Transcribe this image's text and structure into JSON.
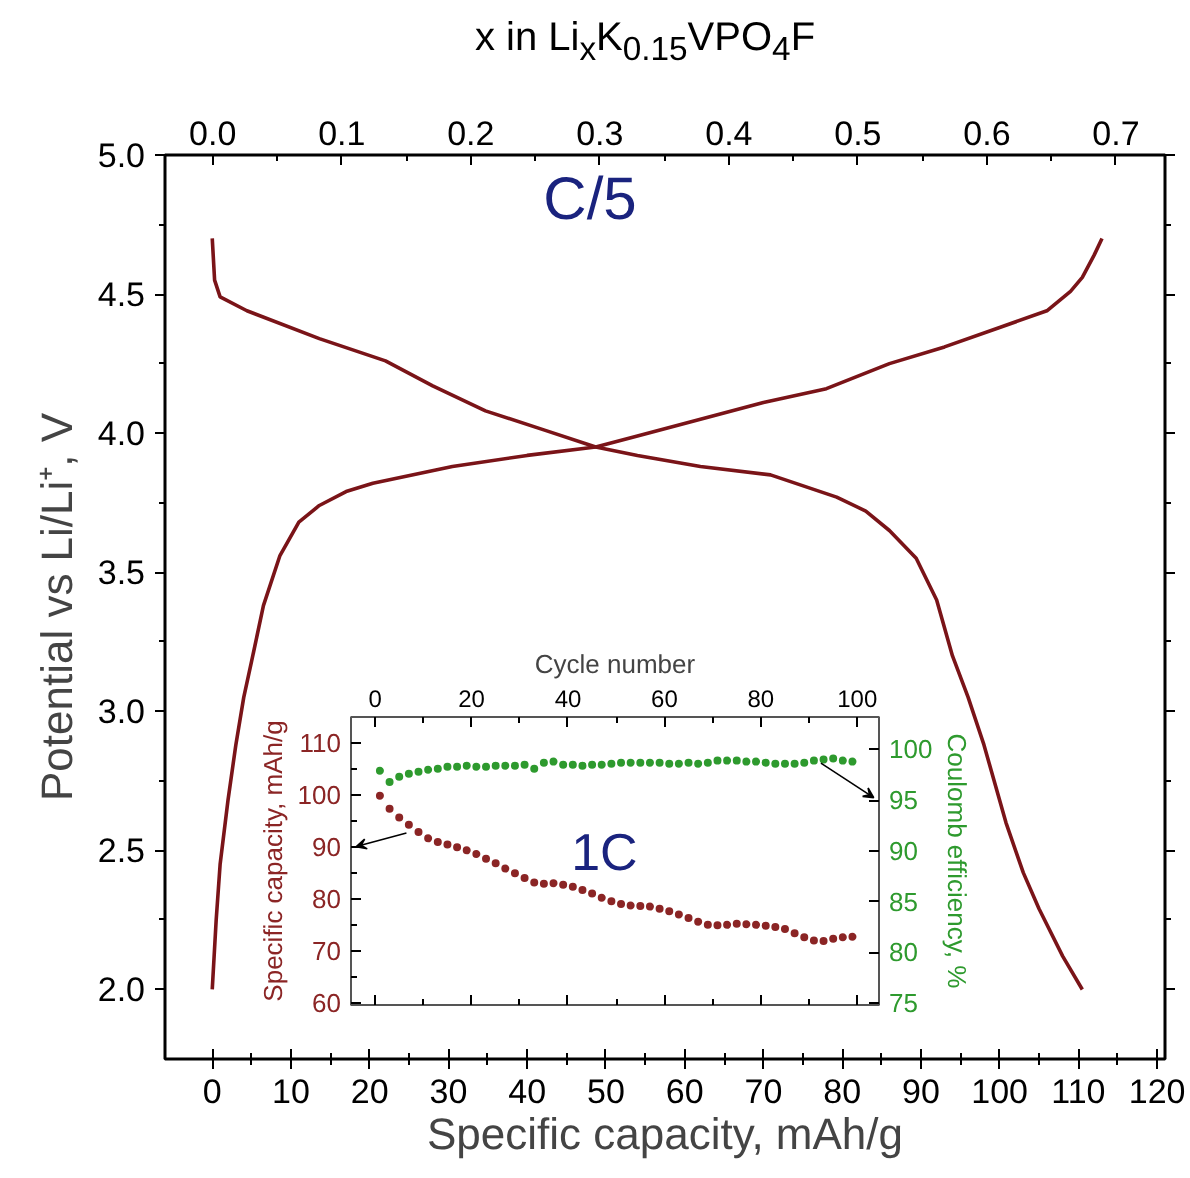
{
  "chart_data": [
    {
      "type": "line",
      "xlabel": "Specific capacity, mAh/g",
      "ylabel": "Potential vs Li/Li⁺, V",
      "x2label": "x in Li$_{x}$K$_{0.15}$VPO$_{4}$F",
      "xlim": [
        -6,
        121
      ],
      "ylim": [
        1.75,
        5.0
      ],
      "x2lim": [
        -0.037,
        0.738
      ],
      "xticks": [
        0,
        {
          "value": 5,
          "label": null
        },
        10,
        {
          "value": 15,
          "label": null
        },
        20,
        {
          "value": 25,
          "label": null
        },
        30,
        {
          "value": 35,
          "label": null
        },
        40,
        {
          "value": 45,
          "label": null
        },
        50,
        {
          "value": 55,
          "label": null
        },
        60,
        {
          "value": 65,
          "label": null
        },
        70,
        {
          "value": 75,
          "label": null
        },
        80,
        {
          "value": 85,
          "label": null
        },
        90,
        {
          "value": 95,
          "label": null
        },
        100,
        {
          "value": 105,
          "label": null
        },
        110,
        {
          "value": 115,
          "label": null
        },
        120
      ],
      "yticks": [
        {
          "value": 2,
          "label": "2.0"
        },
        {
          "value": 2.25,
          "label": null
        },
        2.5,
        {
          "value": 2.75,
          "label": null
        },
        {
          "value": 3,
          "label": "3.0"
        },
        {
          "value": 3.25,
          "label": null
        },
        3.5,
        {
          "value": 3.75,
          "label": null
        },
        {
          "value": 4,
          "label": "4.0"
        },
        {
          "value": 4.25,
          "label": null
        },
        4.5,
        {
          "value": 4.75,
          "label": null
        },
        {
          "value": 5,
          "label": "5.0"
        }
      ],
      "x2ticks": [
        {
          "value": 0,
          "label": "0.0"
        },
        {
          "value": 0.05,
          "label": null
        },
        0.1,
        {
          "value": 0.15,
          "label": null
        },
        0.2,
        {
          "value": 0.25,
          "label": null
        },
        0.3,
        {
          "value": 0.35,
          "label": null
        },
        0.4,
        {
          "value": 0.45,
          "label": null
        },
        0.5,
        {
          "value": 0.55,
          "label": null
        },
        0.6,
        {
          "value": 0.65,
          "label": null
        },
        0.7
      ],
      "annotations": [
        "C/5"
      ],
      "series": [
        {
          "color": "#7a1418",
          "x": [
            0,
            0.5,
            1,
            2,
            3,
            4,
            5,
            6.5,
            8.6,
            11,
            13.6,
            17,
            20.4,
            30.5,
            40,
            48.7,
            54,
            62,
            70,
            78,
            86,
            93,
            100,
            106,
            109,
            110.5,
            112,
            113
          ],
          "values": [
            2.0,
            2.25,
            2.45,
            2.68,
            2.88,
            3.05,
            3.18,
            3.38,
            3.56,
            3.68,
            3.74,
            3.79,
            3.82,
            3.88,
            3.92,
            3.95,
            3.99,
            4.05,
            4.11,
            4.16,
            4.25,
            4.31,
            4.38,
            4.44,
            4.51,
            4.56,
            4.64,
            4.7
          ]
        },
        {
          "color": "#7a1418",
          "x": [
            0,
            0.3,
            1,
            4.4,
            13.6,
            22,
            28,
            34.7,
            42.3,
            48.7,
            54,
            62,
            70.9,
            79.3,
            83,
            86,
            89.4,
            92,
            94,
            96,
            98,
            100.8,
            103,
            105,
            108,
            110.5
          ],
          "values": [
            4.7,
            4.55,
            4.49,
            4.44,
            4.34,
            4.26,
            4.17,
            4.08,
            4.01,
            3.95,
            3.92,
            3.88,
            3.85,
            3.77,
            3.72,
            3.65,
            3.55,
            3.4,
            3.2,
            3.05,
            2.88,
            2.6,
            2.42,
            2.29,
            2.12,
            2.0
          ]
        }
      ]
    },
    {
      "type": "scatter",
      "xlabel": "Cycle number",
      "ylabel": "Specific capacity, mAh/g",
      "y2label": "Coulomb efficiency, %",
      "xlim": [
        -5,
        104.5
      ],
      "ylim": [
        59.6,
        114.9
      ],
      "y2lim": [
        74.8,
        103.2
      ],
      "xticks": [
        0,
        {
          "value": 10,
          "label": null
        },
        20,
        {
          "value": 30,
          "label": null
        },
        40,
        {
          "value": 50,
          "label": null
        },
        60,
        {
          "value": 70,
          "label": null
        },
        80,
        {
          "value": 90,
          "label": null
        },
        100
      ],
      "yticks": [
        60,
        {
          "value": 65,
          "label": null
        },
        70,
        {
          "value": 75,
          "label": null
        },
        80,
        {
          "value": 85,
          "label": null
        },
        90,
        {
          "value": 95,
          "label": null
        },
        100,
        {
          "value": 105,
          "label": null
        },
        110
      ],
      "y2ticks": [
        75,
        80,
        85,
        90,
        95,
        100
      ],
      "marker": "circle",
      "annotations": [
        "1C"
      ],
      "series": [
        {
          "color": "#8b2525",
          "x": [
            1,
            3,
            5,
            7,
            9,
            11,
            13,
            15,
            17,
            19,
            21,
            23,
            25,
            27,
            29,
            31,
            33,
            35,
            37,
            39,
            41,
            43,
            45,
            47,
            49,
            51,
            53,
            55,
            57,
            59,
            61,
            63,
            65,
            67,
            69,
            71,
            73,
            75,
            77,
            79,
            81,
            83,
            85,
            87,
            89,
            91,
            93,
            95,
            97,
            99
          ],
          "values": [
            99.8,
            97.3,
            95.6,
            94.2,
            92.8,
            91.6,
            90.9,
            90.4,
            89.9,
            89.3,
            88.6,
            87.7,
            86.8,
            85.8,
            84.9,
            84.0,
            83.1,
            82.9,
            83.0,
            82.7,
            82.3,
            81.7,
            81.0,
            80.2,
            79.5,
            79.0,
            78.7,
            78.6,
            78.5,
            78.1,
            77.6,
            77.0,
            76.3,
            75.6,
            75.0,
            74.9,
            75.0,
            75.2,
            75.1,
            75.0,
            74.8,
            74.6,
            74.2,
            73.4,
            72.6,
            72.0,
            71.9,
            72.3,
            72.6,
            72.7
          ]
        },
        {
          "color": "#2e9a2e",
          "axis": "y2",
          "x": [
            1,
            3,
            5,
            7,
            9,
            11,
            13,
            15,
            17,
            19,
            21,
            23,
            25,
            27,
            29,
            31,
            33,
            35,
            37,
            39,
            41,
            43,
            45,
            47,
            49,
            51,
            53,
            55,
            57,
            59,
            61,
            63,
            65,
            67,
            69,
            71,
            73,
            75,
            77,
            79,
            81,
            83,
            85,
            87,
            89,
            91,
            93,
            95,
            97,
            99
          ],
          "values": [
            97.9,
            96.8,
            97.3,
            97.6,
            97.8,
            98.0,
            98.1,
            98.3,
            98.3,
            98.4,
            98.3,
            98.3,
            98.4,
            98.4,
            98.4,
            98.5,
            98.1,
            98.7,
            98.8,
            98.5,
            98.5,
            98.4,
            98.5,
            98.5,
            98.6,
            98.7,
            98.7,
            98.7,
            98.7,
            98.7,
            98.6,
            98.6,
            98.7,
            98.6,
            98.7,
            98.9,
            98.9,
            98.9,
            98.8,
            98.8,
            98.7,
            98.6,
            98.6,
            98.6,
            98.7,
            98.9,
            99.0,
            99.1,
            98.9,
            98.8
          ]
        }
      ]
    }
  ]
}
